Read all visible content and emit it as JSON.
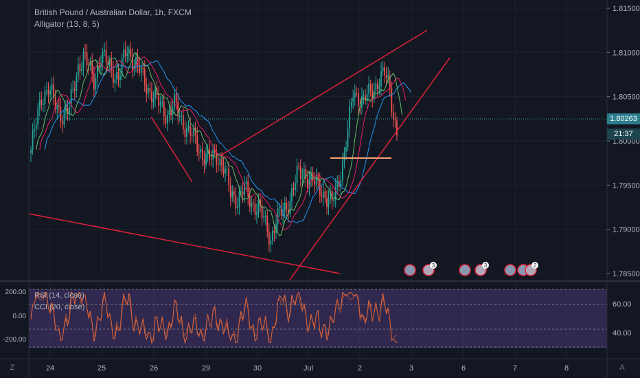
{
  "legend": {
    "symbol": "British Pound / Australian Dollar, 1h, FXCM",
    "alligator": "Alligator (13, 8, 5)",
    "rsi": "RSI (14, close)",
    "cci": "CCI (20, close)"
  },
  "price_tags": {
    "last": "1.80263",
    "countdown": "21:37"
  },
  "corner": {
    "left": "Z",
    "right": "A"
  },
  "event_badges": [
    "3",
    "3",
    "2"
  ],
  "colors": {
    "background": "#131722",
    "up": "#26a69a",
    "down": "#ef5350",
    "trendline": "#e0213b",
    "hline": "#f7a072",
    "jaw": "#2196f3",
    "teeth": "#e91e63",
    "lips": "#66bb6a",
    "ind_band": "#7e57c2",
    "rsi_line": "#e46a3c"
  },
  "chart_data": {
    "type": "candlestick",
    "x_ticks": [
      "24",
      "25",
      "26",
      "29",
      "30",
      "Jul",
      "2",
      "3",
      "6",
      "7",
      "8"
    ],
    "y_ticks": [
      "1.81500",
      "1.81000",
      "1.80500",
      "1.80000",
      "1.79500",
      "1.79000",
      "1.78500"
    ],
    "ylim": [
      1.7845,
      1.8165
    ],
    "last_price": 1.80263,
    "indicator_left_ticks": [
      "200.00",
      "0.00",
      "-200.00"
    ],
    "indicator_right_ticks": [
      "60.00",
      "40.00"
    ],
    "close_path": [
      [
        0,
        1.799
      ],
      [
        6,
        1.805
      ],
      [
        10,
        1.806
      ],
      [
        14,
        1.804
      ],
      [
        18,
        1.803
      ],
      [
        22,
        1.8035
      ],
      [
        27,
        1.8085
      ],
      [
        30,
        1.8095
      ],
      [
        36,
        1.807
      ],
      [
        40,
        1.8095
      ],
      [
        45,
        1.8085
      ],
      [
        50,
        1.807
      ],
      [
        55,
        1.8105
      ],
      [
        59,
        1.809
      ],
      [
        63,
        1.8075
      ],
      [
        67,
        1.806
      ],
      [
        70,
        1.805
      ],
      [
        74,
        1.804
      ],
      [
        78,
        1.803
      ],
      [
        82,
        1.804
      ],
      [
        86,
        1.8025
      ],
      [
        90,
        1.801
      ],
      [
        94,
        1.8
      ],
      [
        98,
        1.7985
      ],
      [
        102,
        1.7978
      ],
      [
        106,
        1.7985
      ],
      [
        110,
        1.797
      ],
      [
        114,
        1.794
      ],
      [
        118,
        1.7935
      ],
      [
        122,
        1.7945
      ],
      [
        126,
        1.793
      ],
      [
        130,
        1.7925
      ],
      [
        134,
        1.7905
      ],
      [
        137,
        1.789
      ],
      [
        140,
        1.791
      ],
      [
        144,
        1.792
      ],
      [
        148,
        1.7935
      ],
      [
        152,
        1.796
      ],
      [
        156,
        1.7965
      ],
      [
        160,
        1.7955
      ],
      [
        163,
        1.795
      ],
      [
        166,
        1.7945
      ],
      [
        169,
        1.7935
      ],
      [
        172,
        1.7928
      ],
      [
        175,
        1.795
      ],
      [
        178,
        1.7975
      ],
      [
        181,
        1.801
      ],
      [
        184,
        1.8055
      ],
      [
        187,
        1.805
      ],
      [
        190,
        1.8045
      ],
      [
        193,
        1.8052
      ],
      [
        196,
        1.806
      ],
      [
        199,
        1.807
      ],
      [
        202,
        1.8075
      ],
      [
        205,
        1.806
      ],
      [
        207,
        1.803
      ],
      [
        209,
        1.801
      ]
    ]
  }
}
